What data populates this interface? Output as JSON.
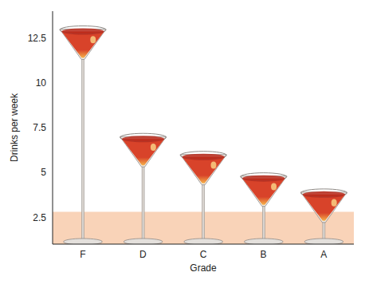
{
  "chart_data": {
    "type": "bar",
    "x_label": "Grade",
    "y_label": "Drinks per week",
    "categories": [
      "F",
      "D",
      "C",
      "B",
      "A"
    ],
    "values": [
      13,
      7,
      6,
      4.8,
      3.9
    ],
    "color": "#d8432a",
    "ylim": [
      1,
      14
    ],
    "yticks": [
      2.5,
      5,
      7.5,
      10,
      12.5
    ],
    "grid": false,
    "band": {
      "y1": 1,
      "y2": 2.8
    }
  }
}
